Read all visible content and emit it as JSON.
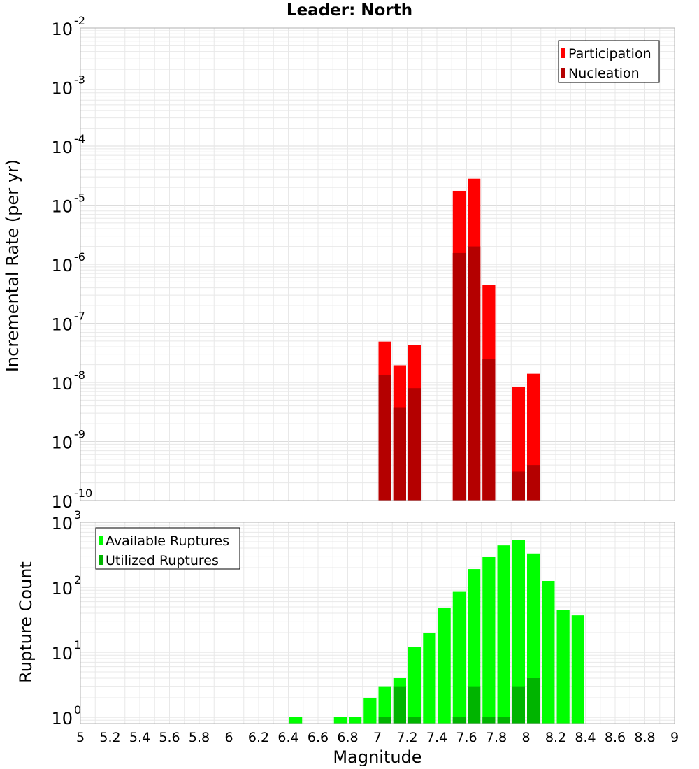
{
  "title": "Leader: North",
  "xlabel": "Magnitude",
  "colors": {
    "participation": "#ff0000",
    "nucleation": "#b40000",
    "available": "#00ff00",
    "utilized": "#00b400",
    "grid": "#e8e8e8",
    "frame": "#b0b0b0"
  },
  "chart_data": [
    {
      "type": "bar",
      "scale": "log",
      "ylabel": "Incremental Rate (per yr)",
      "ylim": [
        1e-10,
        0.01
      ],
      "xlim": [
        5,
        9
      ],
      "x_ticks": [
        "5",
        "5.2",
        "5.4",
        "5.6",
        "5.8",
        "6",
        "6.2",
        "6.4",
        "6.6",
        "6.8",
        "7",
        "7.2",
        "7.4",
        "7.6",
        "7.8",
        "8",
        "8.2",
        "8.4",
        "8.6",
        "8.8",
        "9"
      ],
      "y_tick_exponents": [
        "-10",
        "-9",
        "-8",
        "-7",
        "-6",
        "-5",
        "-4",
        "-3",
        "-2"
      ],
      "legend_position": "top-right",
      "bar_width": 0.1,
      "series": [
        {
          "name": "Participation",
          "color": "#ff0000",
          "points": [
            {
              "x": 7.05,
              "y": 4.9e-08
            },
            {
              "x": 7.15,
              "y": 1.95e-08
            },
            {
              "x": 7.25,
              "y": 4.3e-08
            },
            {
              "x": 7.55,
              "y": 1.75e-05
            },
            {
              "x": 7.65,
              "y": 2.8e-05
            },
            {
              "x": 7.75,
              "y": 4.5e-07
            },
            {
              "x": 7.95,
              "y": 8.5e-09
            },
            {
              "x": 8.05,
              "y": 1.4e-08
            }
          ]
        },
        {
          "name": "Nucleation",
          "color": "#b40000",
          "points": [
            {
              "x": 7.05,
              "y": 1.35e-08
            },
            {
              "x": 7.15,
              "y": 3.8e-09
            },
            {
              "x": 7.25,
              "y": 8e-09
            },
            {
              "x": 7.55,
              "y": 1.55e-06
            },
            {
              "x": 7.65,
              "y": 2e-06
            },
            {
              "x": 7.75,
              "y": 2.5e-08
            },
            {
              "x": 7.95,
              "y": 3.1e-10
            },
            {
              "x": 8.05,
              "y": 4e-10
            }
          ]
        }
      ]
    },
    {
      "type": "bar",
      "scale": "log",
      "ylabel": "Rupture Count",
      "ylim": [
        0.8,
        1000
      ],
      "xlim": [
        5,
        9
      ],
      "x_ticks": [
        "5",
        "5.2",
        "5.4",
        "5.6",
        "5.8",
        "6",
        "6.2",
        "6.4",
        "6.6",
        "6.8",
        "7",
        "7.2",
        "7.4",
        "7.6",
        "7.8",
        "8",
        "8.2",
        "8.4",
        "8.6",
        "8.8",
        "9"
      ],
      "y_tick_exponents": [
        "0",
        "1",
        "2",
        "3"
      ],
      "legend_position": "top-left",
      "bar_width": 0.1,
      "series": [
        {
          "name": "Available Ruptures",
          "color": "#00ff00",
          "points": [
            {
              "x": 6.45,
              "y": 1
            },
            {
              "x": 6.75,
              "y": 1
            },
            {
              "x": 6.85,
              "y": 1
            },
            {
              "x": 6.95,
              "y": 2
            },
            {
              "x": 7.05,
              "y": 3
            },
            {
              "x": 7.15,
              "y": 4
            },
            {
              "x": 7.25,
              "y": 12
            },
            {
              "x": 7.35,
              "y": 20
            },
            {
              "x": 7.45,
              "y": 48
            },
            {
              "x": 7.55,
              "y": 85
            },
            {
              "x": 7.65,
              "y": 190
            },
            {
              "x": 7.75,
              "y": 290
            },
            {
              "x": 7.85,
              "y": 440
            },
            {
              "x": 7.95,
              "y": 530
            },
            {
              "x": 8.05,
              "y": 330
            },
            {
              "x": 8.15,
              "y": 125
            },
            {
              "x": 8.25,
              "y": 45
            },
            {
              "x": 8.35,
              "y": 37
            }
          ]
        },
        {
          "name": "Utilized Ruptures",
          "color": "#00b400",
          "points": [
            {
              "x": 7.05,
              "y": 1
            },
            {
              "x": 7.15,
              "y": 3
            },
            {
              "x": 7.25,
              "y": 1
            },
            {
              "x": 7.55,
              "y": 1
            },
            {
              "x": 7.65,
              "y": 3
            },
            {
              "x": 7.75,
              "y": 1
            },
            {
              "x": 7.85,
              "y": 1
            },
            {
              "x": 7.95,
              "y": 3
            },
            {
              "x": 8.05,
              "y": 4
            }
          ]
        }
      ]
    }
  ]
}
